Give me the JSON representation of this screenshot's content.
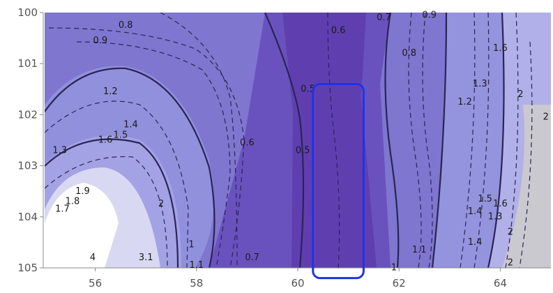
{
  "chart_data": {
    "type": "contour",
    "title": "",
    "xlabel": "",
    "ylabel": "",
    "xlim": [
      55,
      65
    ],
    "ylim": [
      105,
      100
    ],
    "x_ticks": [
      "56",
      "58",
      "60",
      "62",
      "64"
    ],
    "y_ticks": [
      "100",
      "101",
      "102",
      "103",
      "104",
      "105"
    ],
    "grid": false,
    "legend": "none",
    "colors": {
      "low": "#5a34a6",
      "mid": "#7a70cc",
      "high": "#a4a2e2",
      "hot": "#ffffff",
      "highlight_box": "#1f32e8",
      "contour_line": "#2a2456"
    },
    "highlight_region": {
      "x": [
        60.3,
        61.3
      ],
      "y": [
        101.4,
        105.2
      ]
    },
    "contour_labels": [
      {
        "text": "0.8",
        "x": 56.6,
        "y": 100.3
      },
      {
        "text": "0.9",
        "x": 56.1,
        "y": 100.6
      },
      {
        "text": "0.6",
        "x": 60.8,
        "y": 100.4
      },
      {
        "text": "0.7",
        "x": 61.7,
        "y": 100.15
      },
      {
        "text": "0.9",
        "x": 62.6,
        "y": 100.1
      },
      {
        "text": "0.8",
        "x": 62.2,
        "y": 100.85
      },
      {
        "text": "1.6",
        "x": 64.0,
        "y": 100.75
      },
      {
        "text": "1.2",
        "x": 56.3,
        "y": 101.6
      },
      {
        "text": "0.5",
        "x": 60.2,
        "y": 101.55
      },
      {
        "text": "1.3",
        "x": 63.6,
        "y": 101.45
      },
      {
        "text": "1.2",
        "x": 63.3,
        "y": 101.8
      },
      {
        "text": "2",
        "x": 64.4,
        "y": 101.65
      },
      {
        "text": "1.4",
        "x": 56.7,
        "y": 102.25
      },
      {
        "text": "1.5",
        "x": 56.5,
        "y": 102.45
      },
      {
        "text": "1.6",
        "x": 56.2,
        "y": 102.55
      },
      {
        "text": "1.3",
        "x": 55.3,
        "y": 102.75
      },
      {
        "text": "0.6",
        "x": 59.0,
        "y": 102.6
      },
      {
        "text": "0.5",
        "x": 60.1,
        "y": 102.75
      },
      {
        "text": "2",
        "x": 64.9,
        "y": 102.1
      },
      {
        "text": "1.9",
        "x": 55.75,
        "y": 103.55
      },
      {
        "text": "1.8",
        "x": 55.55,
        "y": 103.75
      },
      {
        "text": "1.7",
        "x": 55.35,
        "y": 103.9
      },
      {
        "text": "2",
        "x": 57.3,
        "y": 103.8
      },
      {
        "text": "1.5",
        "x": 63.7,
        "y": 103.7
      },
      {
        "text": "1.6",
        "x": 64.0,
        "y": 103.8
      },
      {
        "text": "1.4",
        "x": 63.5,
        "y": 103.95
      },
      {
        "text": "1.3",
        "x": 63.9,
        "y": 104.05
      },
      {
        "text": "1",
        "x": 57.9,
        "y": 104.6
      },
      {
        "text": "1.1",
        "x": 58.0,
        "y": 105.0
      },
      {
        "text": "0.7",
        "x": 59.1,
        "y": 104.85
      },
      {
        "text": "1.1",
        "x": 62.4,
        "y": 104.7
      },
      {
        "text": "1",
        "x": 61.9,
        "y": 105.05
      },
      {
        "text": "1.4",
        "x": 63.5,
        "y": 104.55
      },
      {
        "text": "2",
        "x": 64.2,
        "y": 104.35
      },
      {
        "text": "2",
        "x": 64.2,
        "y": 104.95
      },
      {
        "text": "3.1",
        "x": 57.0,
        "y": 104.85
      },
      {
        "text": "4",
        "x": 55.95,
        "y": 104.85
      }
    ]
  }
}
